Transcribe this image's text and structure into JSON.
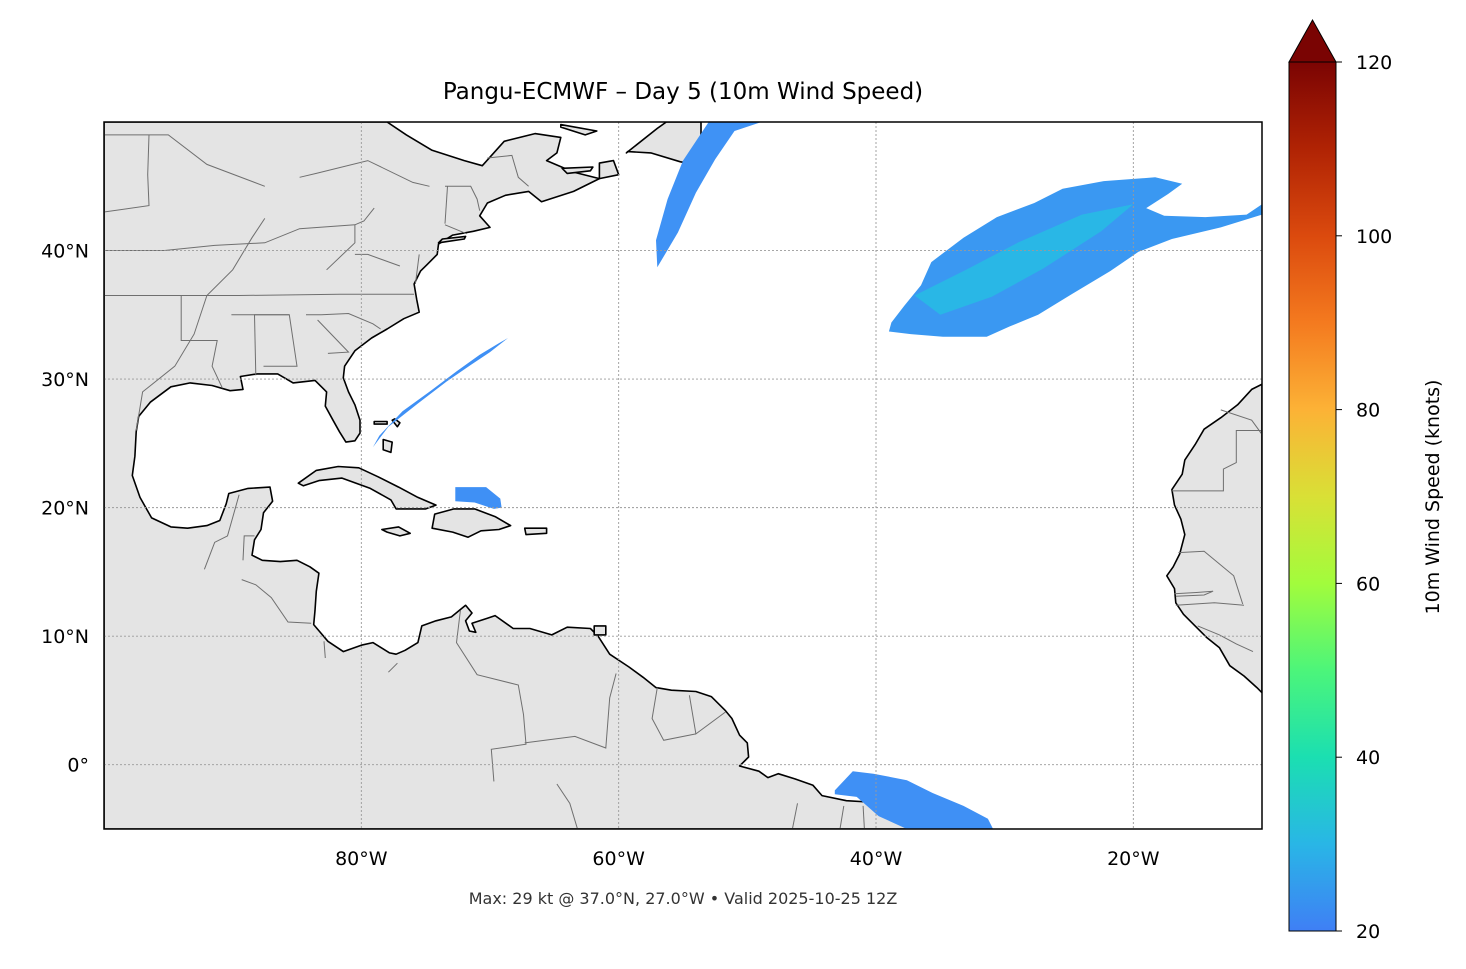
{
  "title": "Pangu-ECMWF – Day 5 (10m Wind Speed)",
  "footer": "Max: 29 kt @ 37.0°N, 27.0°W • Valid 2025-10-25 12Z",
  "map": {
    "extent": {
      "lon": [
        -100,
        -10
      ],
      "lat": [
        -5,
        50
      ]
    },
    "lon_ticks": [
      {
        "value": -80,
        "label": "80°W"
      },
      {
        "value": -60,
        "label": "60°W"
      },
      {
        "value": -40,
        "label": "40°W"
      },
      {
        "value": -20,
        "label": "20°W"
      }
    ],
    "lat_ticks": [
      {
        "value": 40,
        "label": "40°N"
      },
      {
        "value": 30,
        "label": "30°N"
      },
      {
        "value": 20,
        "label": "20°N"
      },
      {
        "value": 10,
        "label": "10°N"
      },
      {
        "value": 0,
        "label": "0°"
      }
    ],
    "gridlines": true,
    "land_color": "#e4e4e4",
    "ocean_color": "#ffffff",
    "wind_areas": [
      {
        "name": "gulf-stream-band",
        "color": "#3f90f5",
        "coords": [
          [
            -79.1,
            24.7
          ],
          [
            -77.9,
            26.3
          ],
          [
            -75.6,
            28.1
          ],
          [
            -73.4,
            29.8
          ],
          [
            -71.5,
            31.1
          ],
          [
            -70.0,
            32.1
          ],
          [
            -68.6,
            33.2
          ],
          [
            -69.3,
            32.8
          ],
          [
            -70.8,
            31.9
          ],
          [
            -72.6,
            30.6
          ],
          [
            -74.6,
            29.1
          ],
          [
            -76.8,
            27.5
          ],
          [
            -78.6,
            25.6
          ]
        ]
      },
      {
        "name": "caribbean-patch",
        "color": "#3f90f5",
        "coords": [
          [
            -72.7,
            21.6
          ],
          [
            -70.3,
            21.6
          ],
          [
            -69.2,
            20.7
          ],
          [
            -69.1,
            20.0
          ],
          [
            -69.7,
            19.9
          ],
          [
            -71.2,
            20.4
          ],
          [
            -72.7,
            20.5
          ]
        ]
      },
      {
        "name": "north-atlantic-band",
        "color": "#3f92f5",
        "coords": [
          [
            -57.0,
            38.7
          ],
          [
            -55.4,
            41.4
          ],
          [
            -54.0,
            44.5
          ],
          [
            -52.5,
            47.1
          ],
          [
            -51.0,
            49.3
          ],
          [
            -48.9,
            50.0
          ],
          [
            -53.0,
            50.0
          ],
          [
            -55.0,
            47.0
          ],
          [
            -56.2,
            44.0
          ],
          [
            -57.1,
            40.8
          ]
        ]
      },
      {
        "name": "central-atlantic-core",
        "color": "#3a98f2",
        "coords": [
          [
            -38.8,
            34.4
          ],
          [
            -37.8,
            35.7
          ],
          [
            -36.5,
            37.3
          ],
          [
            -35.7,
            39.1
          ],
          [
            -33.2,
            41.0
          ],
          [
            -30.6,
            42.6
          ],
          [
            -27.7,
            43.7
          ],
          [
            -25.5,
            44.8
          ],
          [
            -22.3,
            45.4
          ],
          [
            -18.3,
            45.7
          ],
          [
            -16.2,
            45.2
          ],
          [
            -17.3,
            44.4
          ],
          [
            -19.0,
            43.3
          ],
          [
            -17.6,
            42.7
          ],
          [
            -14.4,
            42.6
          ],
          [
            -11.2,
            42.8
          ],
          [
            -10.0,
            43.6
          ],
          [
            -10.0,
            42.8
          ],
          [
            -13.2,
            41.8
          ],
          [
            -17.0,
            40.9
          ],
          [
            -19.6,
            39.9
          ],
          [
            -21.8,
            38.4
          ],
          [
            -24.8,
            36.6
          ],
          [
            -27.4,
            35.0
          ],
          [
            -29.6,
            34.1
          ],
          [
            -31.4,
            33.3
          ],
          [
            -34.8,
            33.3
          ],
          [
            -37.3,
            33.5
          ],
          [
            -39.0,
            33.7
          ]
        ]
      },
      {
        "name": "equatorial-patch",
        "color": "#3f90f5",
        "coords": [
          [
            -43.2,
            -2.0
          ],
          [
            -41.8,
            -0.5
          ],
          [
            -40.2,
            -0.7
          ],
          [
            -37.6,
            -1.2
          ],
          [
            -35.6,
            -2.2
          ],
          [
            -33.2,
            -3.2
          ],
          [
            -31.3,
            -4.2
          ],
          [
            -30.9,
            -5.0
          ],
          [
            -37.6,
            -5.0
          ],
          [
            -39.8,
            -4.0
          ],
          [
            -41.5,
            -2.5
          ],
          [
            -43.2,
            -2.3
          ]
        ]
      }
    ],
    "wind_core": {
      "name": "max-wind-core",
      "color": "#27bce4",
      "coords": [
        [
          -37.0,
          36.5
        ],
        [
          -33.0,
          38.5
        ],
        [
          -29.0,
          40.6
        ],
        [
          -24.0,
          42.8
        ],
        [
          -20.0,
          43.6
        ],
        [
          -22.5,
          41.5
        ],
        [
          -27.0,
          38.6
        ],
        [
          -31.0,
          36.4
        ],
        [
          -35.0,
          35.0
        ]
      ]
    }
  },
  "colorbar": {
    "label": "10m Wind Speed (knots)",
    "min": 20,
    "max": 120,
    "extend": "max",
    "ticks": [
      {
        "value": 20,
        "label": "20"
      },
      {
        "value": 40,
        "label": "40"
      },
      {
        "value": 60,
        "label": "60"
      },
      {
        "value": 80,
        "label": "80"
      },
      {
        "value": 100,
        "label": "100"
      },
      {
        "value": 120,
        "label": "120"
      }
    ],
    "colormap": [
      "#3f7ff5",
      "#29b6e6",
      "#1bdfb1",
      "#4cf57a",
      "#a2fc3c",
      "#d9e036",
      "#fcb236",
      "#f47a1f",
      "#db4a0e",
      "#b02304",
      "#7b0403"
    ],
    "over_color": "#7a0403"
  }
}
